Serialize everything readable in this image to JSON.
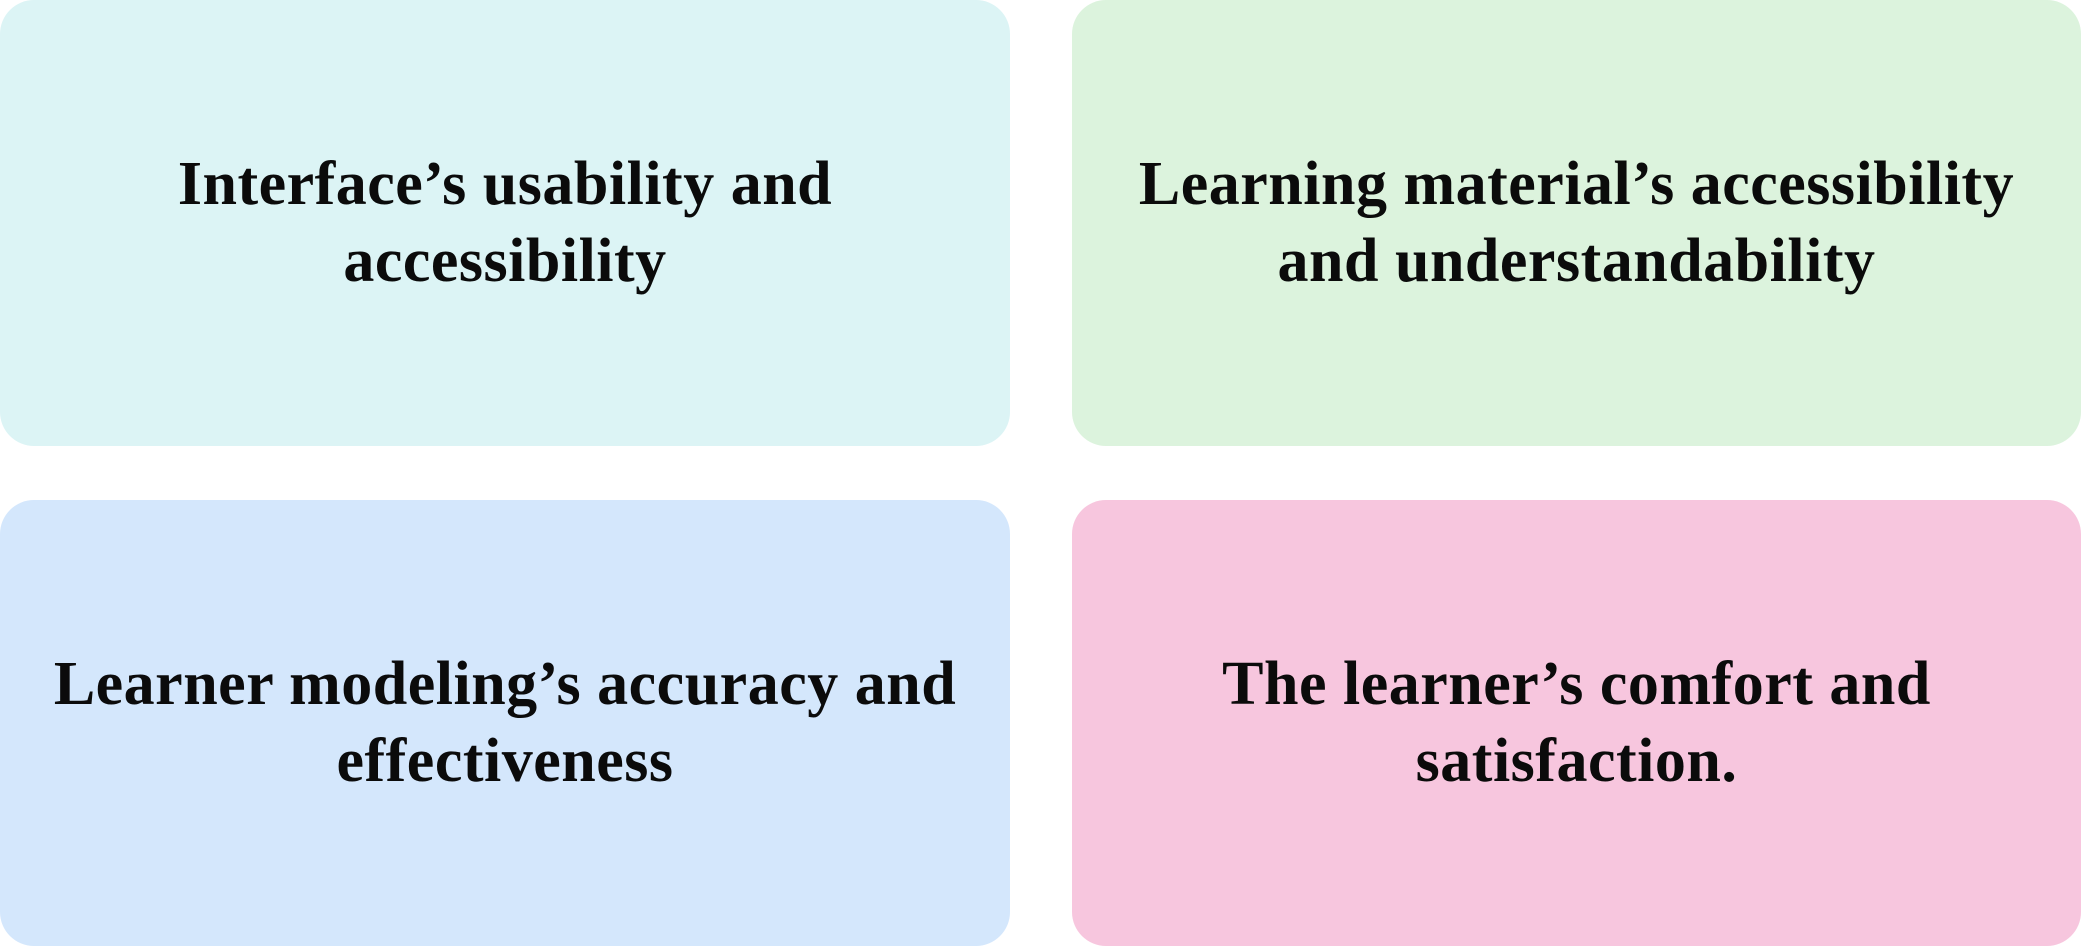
{
  "cards": [
    {
      "text": "Interface’s usability and accessibility",
      "color": "#dcf4f5"
    },
    {
      "text": "Learning material’s accessibility and understandability",
      "color": "#dcf3dd"
    },
    {
      "text": "Learner modeling’s accuracy and effectiveness",
      "color": "#d4e7fc"
    },
    {
      "text": "The learner’s comfort and satisfaction.",
      "color": "#f7c6de"
    }
  ]
}
